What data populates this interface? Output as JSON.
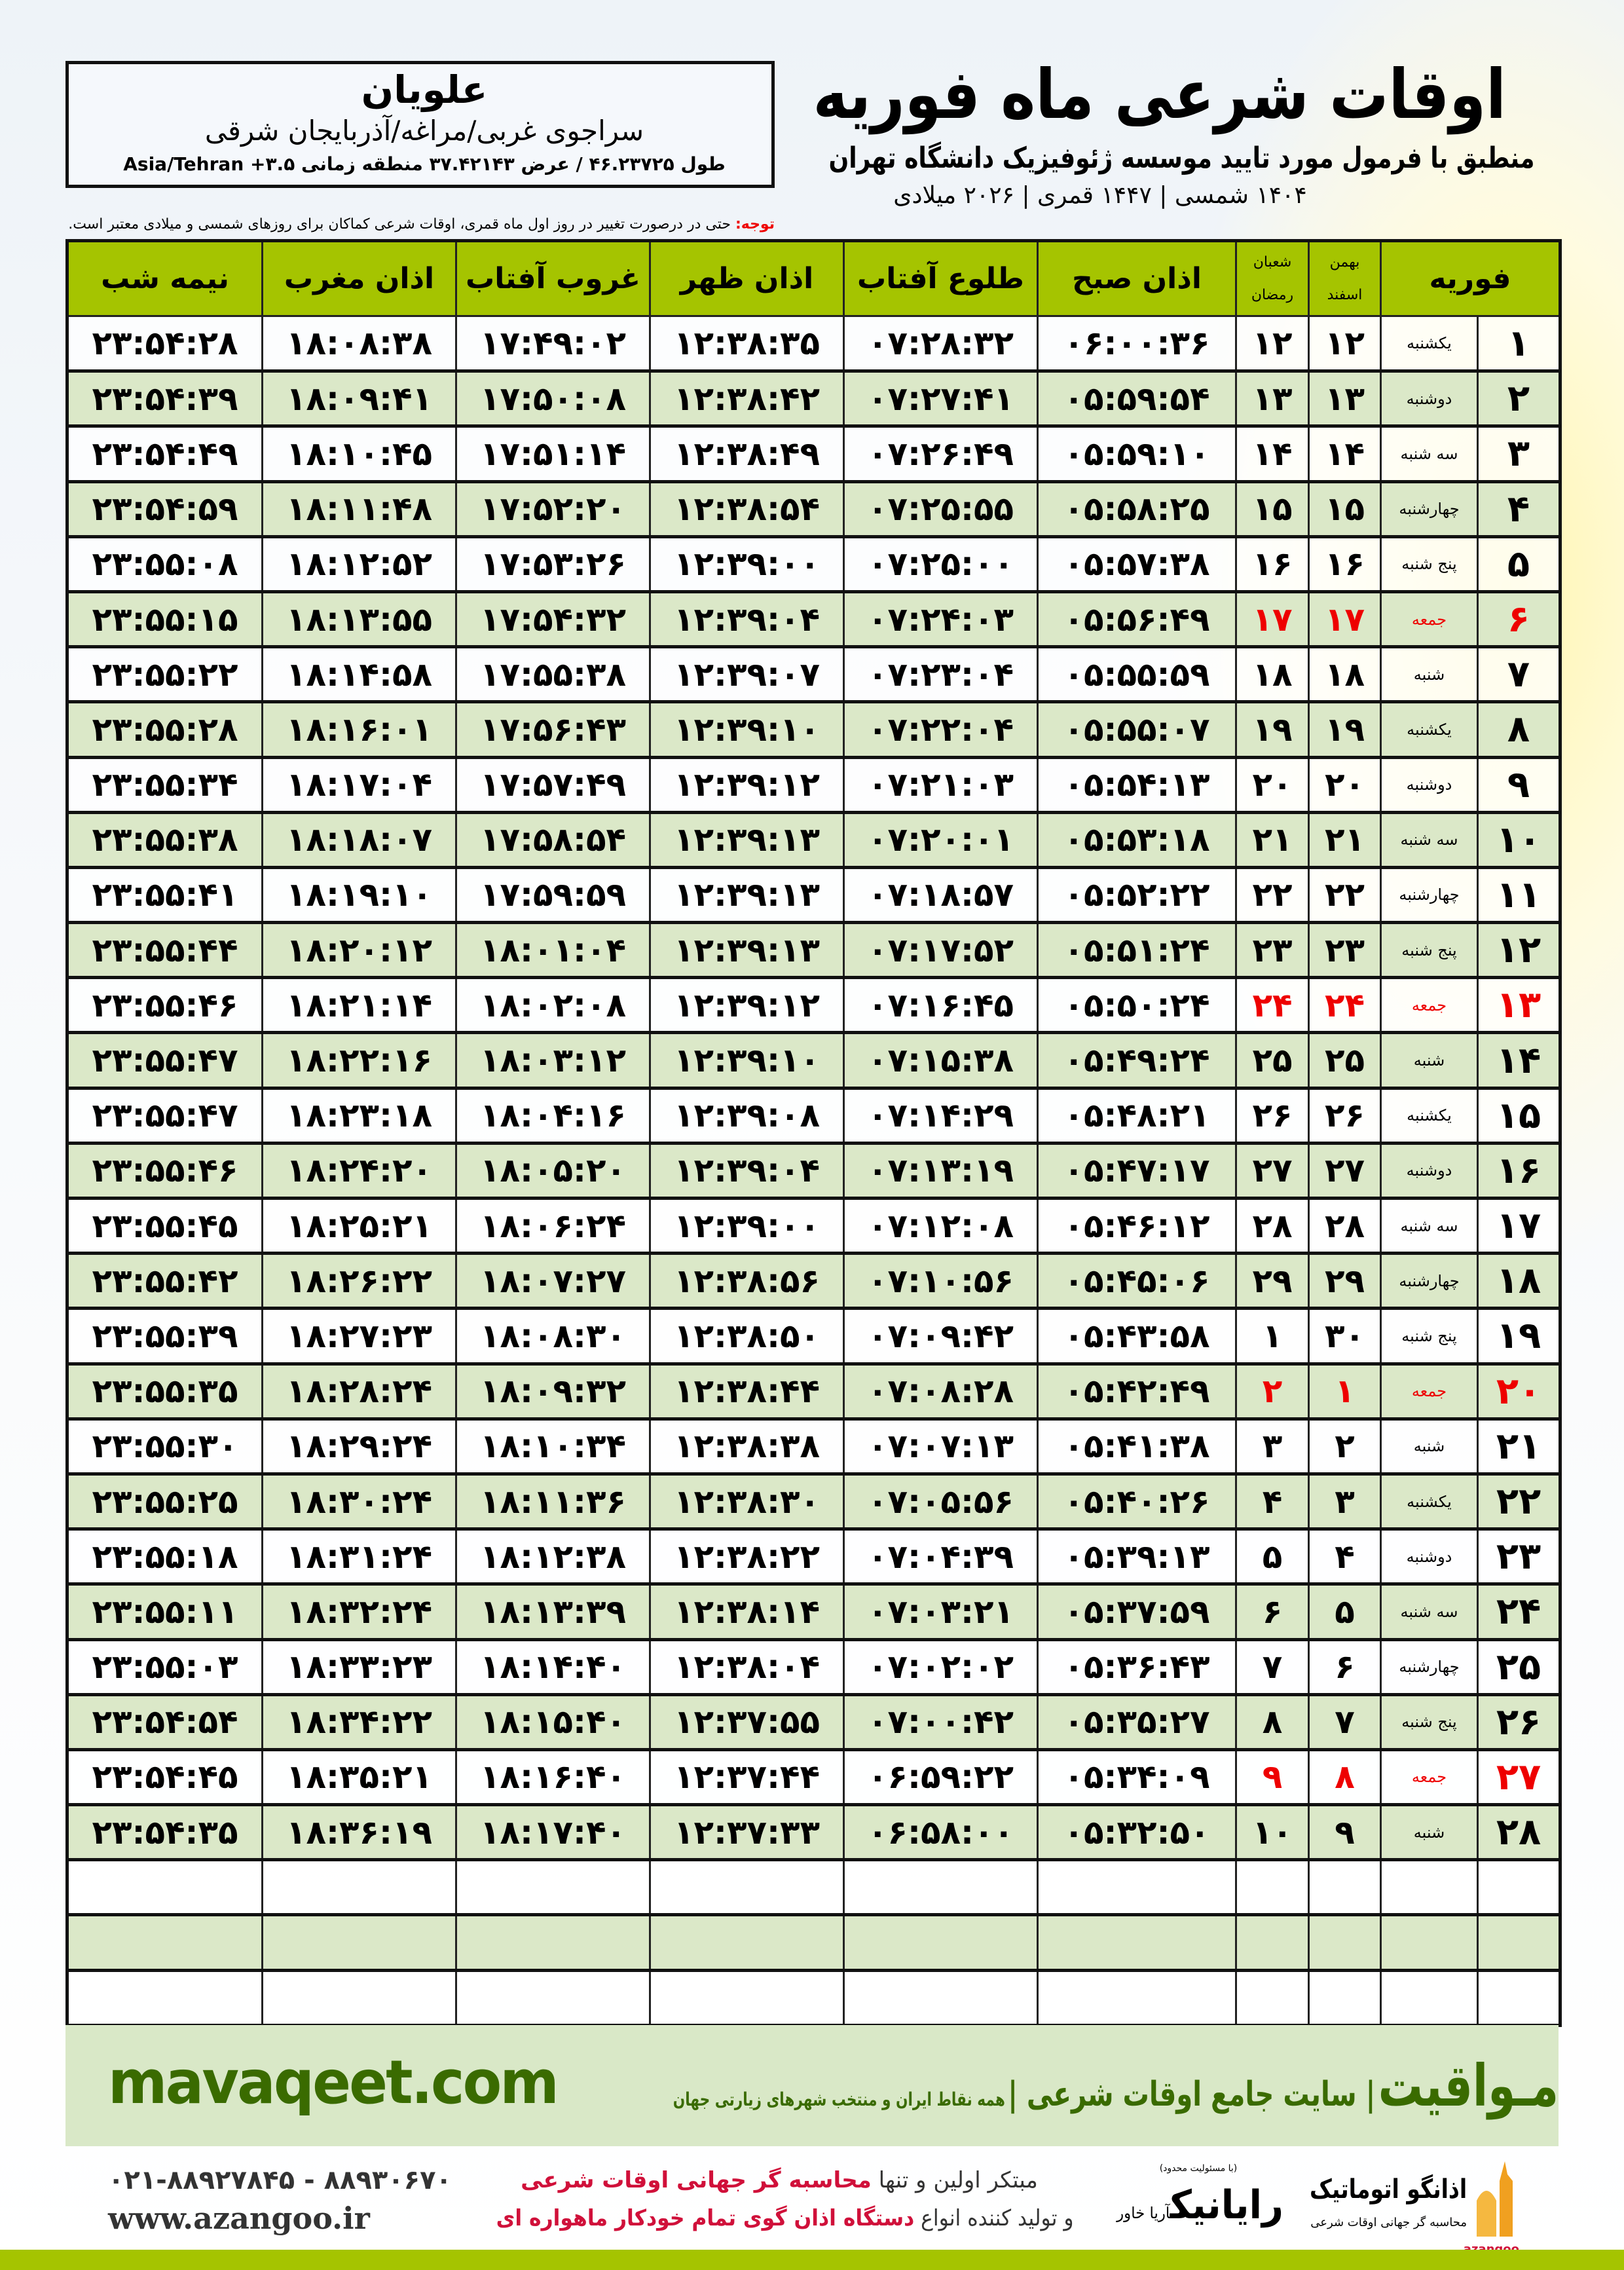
{
  "location": {
    "name": "علویان",
    "region": "سراجوی غربی/مراغه/آذربایجان شرقی",
    "coords": "طول ۴۶.۲۳۷۲۵ / عرض ۳۷.۴۲۱۴۳ منطقه زمانی ۳.۵+ Asia/Tehran"
  },
  "header": {
    "title": "اوقات شرعی ماه فوریه",
    "subtitle": "منطبق با فرمول مورد تایید موسسه ژئوفیزیک دانشگاه تهران",
    "dates": "۱۴۰۴ شمسی | ۱۴۴۷ قمری | ۲۰۲۶ میلادی"
  },
  "note": {
    "label": "توجه:",
    "text": " حتی در درصورت تغییر در روز اول ماه قمری، اوقات شرعی کماکان برای روزهای شمسی و میلادی معتبر است."
  },
  "table": {
    "headers": {
      "month": "فوریه",
      "sh1_top": "بهمن",
      "sh1_bottom": "اسفند",
      "q_top": "شعبان",
      "q_bottom": "رمضان",
      "fajr": "اذان صبح",
      "sunrise": "طلوع آفتاب",
      "dhuhr": "اذان ظهر",
      "sunset": "غروب آفتاب",
      "maghrib": "اذان مغرب",
      "midnight": "نیمه شب"
    },
    "rows": [
      [
        "۱",
        "یکشنبه",
        "۱۲",
        "۱۲",
        "۰۶:۰۰:۳۶",
        "۰۷:۲۸:۳۲",
        "۱۲:۳۸:۳۵",
        "۱۷:۴۹:۰۲",
        "۱۸:۰۸:۳۸",
        "۲۳:۵۴:۲۸"
      ],
      [
        "۲",
        "دوشنبه",
        "۱۳",
        "۱۳",
        "۰۵:۵۹:۵۴",
        "۰۷:۲۷:۴۱",
        "۱۲:۳۸:۴۲",
        "۱۷:۵۰:۰۸",
        "۱۸:۰۹:۴۱",
        "۲۳:۵۴:۳۹"
      ],
      [
        "۳",
        "سه شنبه",
        "۱۴",
        "۱۴",
        "۰۵:۵۹:۱۰",
        "۰۷:۲۶:۴۹",
        "۱۲:۳۸:۴۹",
        "۱۷:۵۱:۱۴",
        "۱۸:۱۰:۴۵",
        "۲۳:۵۴:۴۹"
      ],
      [
        "۴",
        "چهارشنبه",
        "۱۵",
        "۱۵",
        "۰۵:۵۸:۲۵",
        "۰۷:۲۵:۵۵",
        "۱۲:۳۸:۵۴",
        "۱۷:۵۲:۲۰",
        "۱۸:۱۱:۴۸",
        "۲۳:۵۴:۵۹"
      ],
      [
        "۵",
        "پنج شنبه",
        "۱۶",
        "۱۶",
        "۰۵:۵۷:۳۸",
        "۰۷:۲۵:۰۰",
        "۱۲:۳۹:۰۰",
        "۱۷:۵۳:۲۶",
        "۱۸:۱۲:۵۲",
        "۲۳:۵۵:۰۸"
      ],
      [
        "۶",
        "جمعه",
        "۱۷",
        "۱۷",
        "۰۵:۵۶:۴۹",
        "۰۷:۲۴:۰۳",
        "۱۲:۳۹:۰۴",
        "۱۷:۵۴:۳۲",
        "۱۸:۱۳:۵۵",
        "۲۳:۵۵:۱۵"
      ],
      [
        "۷",
        "شنبه",
        "۱۸",
        "۱۸",
        "۰۵:۵۵:۵۹",
        "۰۷:۲۳:۰۴",
        "۱۲:۳۹:۰۷",
        "۱۷:۵۵:۳۸",
        "۱۸:۱۴:۵۸",
        "۲۳:۵۵:۲۲"
      ],
      [
        "۸",
        "یکشنبه",
        "۱۹",
        "۱۹",
        "۰۵:۵۵:۰۷",
        "۰۷:۲۲:۰۴",
        "۱۲:۳۹:۱۰",
        "۱۷:۵۶:۴۳",
        "۱۸:۱۶:۰۱",
        "۲۳:۵۵:۲۸"
      ],
      [
        "۹",
        "دوشنبه",
        "۲۰",
        "۲۰",
        "۰۵:۵۴:۱۳",
        "۰۷:۲۱:۰۳",
        "۱۲:۳۹:۱۲",
        "۱۷:۵۷:۴۹",
        "۱۸:۱۷:۰۴",
        "۲۳:۵۵:۳۴"
      ],
      [
        "۱۰",
        "سه شنبه",
        "۲۱",
        "۲۱",
        "۰۵:۵۳:۱۸",
        "۰۷:۲۰:۰۱",
        "۱۲:۳۹:۱۳",
        "۱۷:۵۸:۵۴",
        "۱۸:۱۸:۰۷",
        "۲۳:۵۵:۳۸"
      ],
      [
        "۱۱",
        "چهارشنبه",
        "۲۲",
        "۲۲",
        "۰۵:۵۲:۲۲",
        "۰۷:۱۸:۵۷",
        "۱۲:۳۹:۱۳",
        "۱۷:۵۹:۵۹",
        "۱۸:۱۹:۱۰",
        "۲۳:۵۵:۴۱"
      ],
      [
        "۱۲",
        "پنج شنبه",
        "۲۳",
        "۲۳",
        "۰۵:۵۱:۲۴",
        "۰۷:۱۷:۵۲",
        "۱۲:۳۹:۱۳",
        "۱۸:۰۱:۰۴",
        "۱۸:۲۰:۱۲",
        "۲۳:۵۵:۴۴"
      ],
      [
        "۱۳",
        "جمعه",
        "۲۴",
        "۲۴",
        "۰۵:۵۰:۲۴",
        "۰۷:۱۶:۴۵",
        "۱۲:۳۹:۱۲",
        "۱۸:۰۲:۰۸",
        "۱۸:۲۱:۱۴",
        "۲۳:۵۵:۴۶"
      ],
      [
        "۱۴",
        "شنبه",
        "۲۵",
        "۲۵",
        "۰۵:۴۹:۲۴",
        "۰۷:۱۵:۳۸",
        "۱۲:۳۹:۱۰",
        "۱۸:۰۳:۱۲",
        "۱۸:۲۲:۱۶",
        "۲۳:۵۵:۴۷"
      ],
      [
        "۱۵",
        "یکشنبه",
        "۲۶",
        "۲۶",
        "۰۵:۴۸:۲۱",
        "۰۷:۱۴:۲۹",
        "۱۲:۳۹:۰۸",
        "۱۸:۰۴:۱۶",
        "۱۸:۲۳:۱۸",
        "۲۳:۵۵:۴۷"
      ],
      [
        "۱۶",
        "دوشنبه",
        "۲۷",
        "۲۷",
        "۰۵:۴۷:۱۷",
        "۰۷:۱۳:۱۹",
        "۱۲:۳۹:۰۴",
        "۱۸:۰۵:۲۰",
        "۱۸:۲۴:۲۰",
        "۲۳:۵۵:۴۶"
      ],
      [
        "۱۷",
        "سه شنبه",
        "۲۸",
        "۲۸",
        "۰۵:۴۶:۱۲",
        "۰۷:۱۲:۰۸",
        "۱۲:۳۹:۰۰",
        "۱۸:۰۶:۲۴",
        "۱۸:۲۵:۲۱",
        "۲۳:۵۵:۴۵"
      ],
      [
        "۱۸",
        "چهارشنبه",
        "۲۹",
        "۲۹",
        "۰۵:۴۵:۰۶",
        "۰۷:۱۰:۵۶",
        "۱۲:۳۸:۵۶",
        "۱۸:۰۷:۲۷",
        "۱۸:۲۶:۲۲",
        "۲۳:۵۵:۴۲"
      ],
      [
        "۱۹",
        "پنج شنبه",
        "۳۰",
        "۱",
        "۰۵:۴۳:۵۸",
        "۰۷:۰۹:۴۲",
        "۱۲:۳۸:۵۰",
        "۱۸:۰۸:۳۰",
        "۱۸:۲۷:۲۳",
        "۲۳:۵۵:۳۹"
      ],
      [
        "۲۰",
        "جمعه",
        "۱",
        "۲",
        "۰۵:۴۲:۴۹",
        "۰۷:۰۸:۲۸",
        "۱۲:۳۸:۴۴",
        "۱۸:۰۹:۳۲",
        "۱۸:۲۸:۲۴",
        "۲۳:۵۵:۳۵"
      ],
      [
        "۲۱",
        "شنبه",
        "۲",
        "۳",
        "۰۵:۴۱:۳۸",
        "۰۷:۰۷:۱۳",
        "۱۲:۳۸:۳۸",
        "۱۸:۱۰:۳۴",
        "۱۸:۲۹:۲۴",
        "۲۳:۵۵:۳۰"
      ],
      [
        "۲۲",
        "یکشنبه",
        "۳",
        "۴",
        "۰۵:۴۰:۲۶",
        "۰۷:۰۵:۵۶",
        "۱۲:۳۸:۳۰",
        "۱۸:۱۱:۳۶",
        "۱۸:۳۰:۲۴",
        "۲۳:۵۵:۲۵"
      ],
      [
        "۲۳",
        "دوشنبه",
        "۴",
        "۵",
        "۰۵:۳۹:۱۳",
        "۰۷:۰۴:۳۹",
        "۱۲:۳۸:۲۲",
        "۱۸:۱۲:۳۸",
        "۱۸:۳۱:۲۴",
        "۲۳:۵۵:۱۸"
      ],
      [
        "۲۴",
        "سه شنبه",
        "۵",
        "۶",
        "۰۵:۳۷:۵۹",
        "۰۷:۰۳:۲۱",
        "۱۲:۳۸:۱۴",
        "۱۸:۱۳:۳۹",
        "۱۸:۳۲:۲۴",
        "۲۳:۵۵:۱۱"
      ],
      [
        "۲۵",
        "چهارشنبه",
        "۶",
        "۷",
        "۰۵:۳۶:۴۳",
        "۰۷:۰۲:۰۲",
        "۱۲:۳۸:۰۴",
        "۱۸:۱۴:۴۰",
        "۱۸:۳۳:۲۳",
        "۲۳:۵۵:۰۳"
      ],
      [
        "۲۶",
        "پنج شنبه",
        "۷",
        "۸",
        "۰۵:۳۵:۲۷",
        "۰۷:۰۰:۴۲",
        "۱۲:۳۷:۵۵",
        "۱۸:۱۵:۴۰",
        "۱۸:۳۴:۲۲",
        "۲۳:۵۴:۵۴"
      ],
      [
        "۲۷",
        "جمعه",
        "۸",
        "۹",
        "۰۵:۳۴:۰۹",
        "۰۶:۵۹:۲۲",
        "۱۲:۳۷:۴۴",
        "۱۸:۱۶:۴۰",
        "۱۸:۳۵:۲۱",
        "۲۳:۵۴:۴۵"
      ],
      [
        "۲۸",
        "شنبه",
        "۹",
        "۱۰",
        "۰۵:۳۲:۵۰",
        "۰۶:۵۸:۰۰",
        "۱۲:۳۷:۳۳",
        "۱۸:۱۷:۴۰",
        "۱۸:۳۶:۱۹",
        "۲۳:۵۴:۳۵"
      ]
    ],
    "friday_label": "جمعه",
    "empty_rows": 3
  },
  "footer": {
    "site": "mavaqeet.com",
    "brand": "مـواقیت",
    "brand_tag": "| سایت جامع اوقات شرعی |",
    "brand_sub": "همه نقاط ایران و منتخب شهرهای زیارتی جهان",
    "phone": "۰۲۱-۸۸۹۲۷۸۴۵ - ۸۸۹۳۰۶۷۰",
    "web": "www.azangoo.ir",
    "promo1_a": "مبتکر اولین و تنها ",
    "promo1_b": "محاسبه گر جهانی اوقات شرعی",
    "promo2_a": "و تولید کننده انواع ",
    "promo2_b": "دستگاه اذان گوی تمام خودکار ماهواره ای",
    "raya_small": "(با مسئولیت محدود)",
    "raya": "رایانیک",
    "raya_side": "آریا خاور",
    "azangoo": "اذانگو اتوماتیک",
    "azangoo_sub": "محاسبه گر جهانی اوقات شرعی",
    "azangoo_en": "azangoo"
  },
  "colors": {
    "header_green": "#a5c400",
    "row_alt": "#dbe8c8",
    "friday_red": "#e00000",
    "brand_green": "#3a6b00"
  }
}
